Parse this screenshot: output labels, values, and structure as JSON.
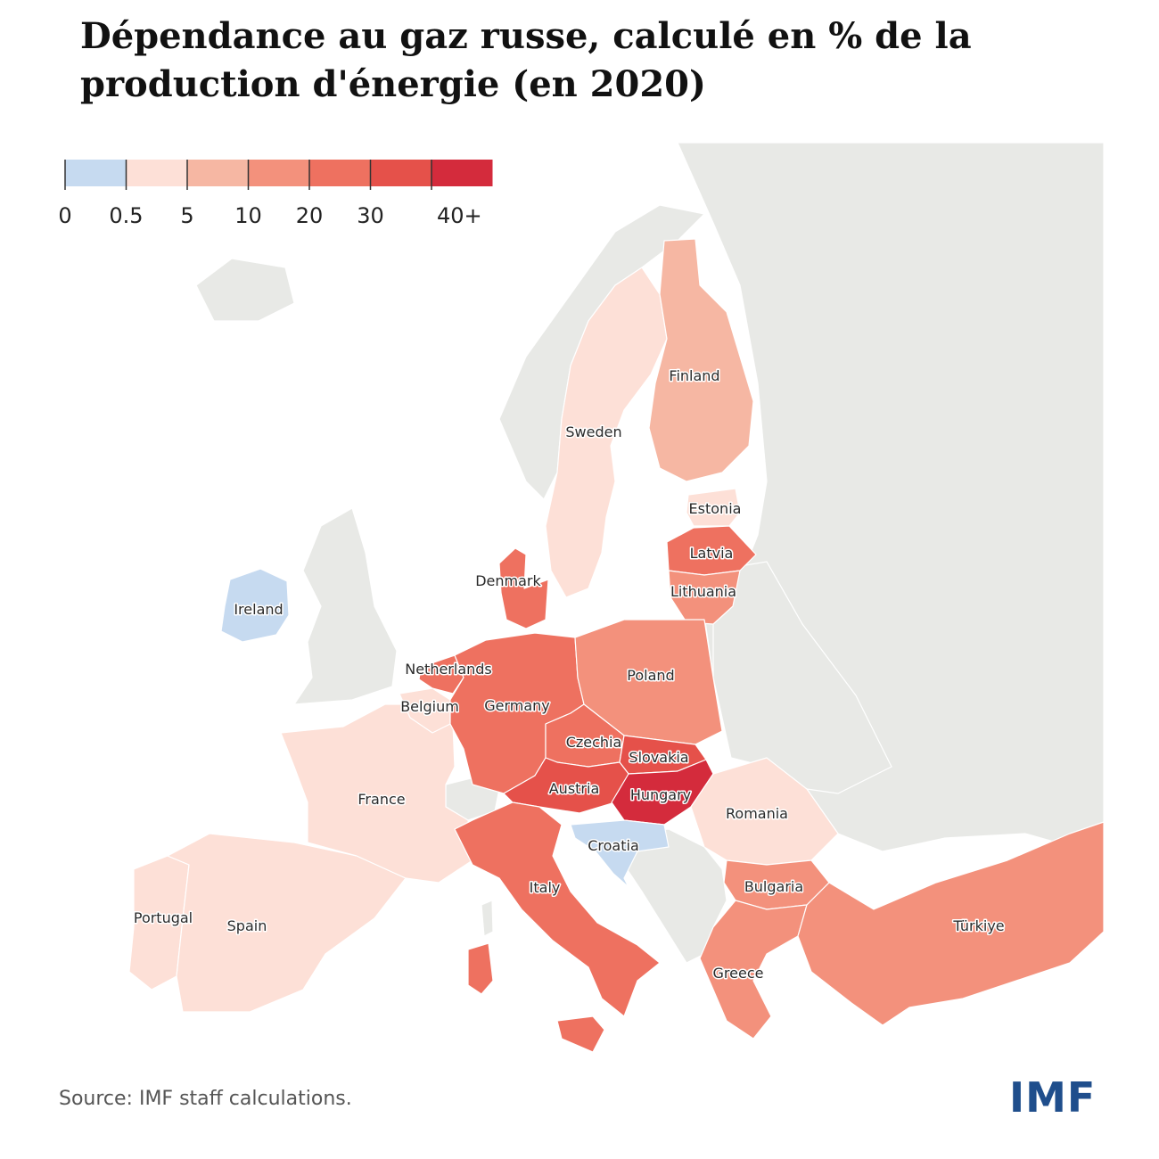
{
  "title": {
    "line1": "Dépendance au gaz russe, calculé en % de la",
    "line2": "production d'énergie (en 2020)"
  },
  "legend": {
    "ticks": [
      "0",
      "0.5",
      "5",
      "10",
      "20",
      "30",
      "40+"
    ],
    "colors": [
      "#c6daf0",
      "#fde0d7",
      "#f6b7a3",
      "#f3917c",
      "#ee7160",
      "#e5514a",
      "#d42b3c"
    ]
  },
  "countries": {
    "ireland": {
      "label": "Ireland",
      "color": "#c6daf0"
    },
    "portugal": {
      "label": "Portugal",
      "color": "#fde0d7"
    },
    "spain": {
      "label": "Spain",
      "color": "#fde0d7"
    },
    "france": {
      "label": "France",
      "color": "#fde0d7"
    },
    "belgium": {
      "label": "Belgium",
      "color": "#fde0d7"
    },
    "netherlands": {
      "label": "Netherlands",
      "color": "#ee7160"
    },
    "germany": {
      "label": "Germany",
      "color": "#ee7160"
    },
    "denmark": {
      "label": "Denmark",
      "color": "#ee7160"
    },
    "sweden": {
      "label": "Sweden",
      "color": "#fde0d7"
    },
    "finland": {
      "label": "Finland",
      "color": "#f6b7a3"
    },
    "estonia": {
      "label": "Estonia",
      "color": "#fde0d7"
    },
    "latvia": {
      "label": "Latvia",
      "color": "#ee7160"
    },
    "lithuania": {
      "label": "Lithuania",
      "color": "#f3917c"
    },
    "poland": {
      "label": "Poland",
      "color": "#f3917c"
    },
    "czechia": {
      "label": "Czechia",
      "color": "#ee7160"
    },
    "slovakia": {
      "label": "Slovakia",
      "color": "#e5514a"
    },
    "austria": {
      "label": "Austria",
      "color": "#e5514a"
    },
    "hungary": {
      "label": "Hungary",
      "color": "#d42b3c"
    },
    "romania": {
      "label": "Romania",
      "color": "#fde0d7"
    },
    "croatia": {
      "label": "Croatia",
      "color": "#c6daf0"
    },
    "italy": {
      "label": "Italy",
      "color": "#ee7160"
    },
    "bulgaria": {
      "label": "Bulgaria",
      "color": "#f3917c"
    },
    "greece": {
      "label": "Greece",
      "color": "#f3917c"
    },
    "turkiye": {
      "label": "Türkiye",
      "color": "#f3917c"
    }
  },
  "source": "Source: IMF staff calculations.",
  "logo": "IMF"
}
